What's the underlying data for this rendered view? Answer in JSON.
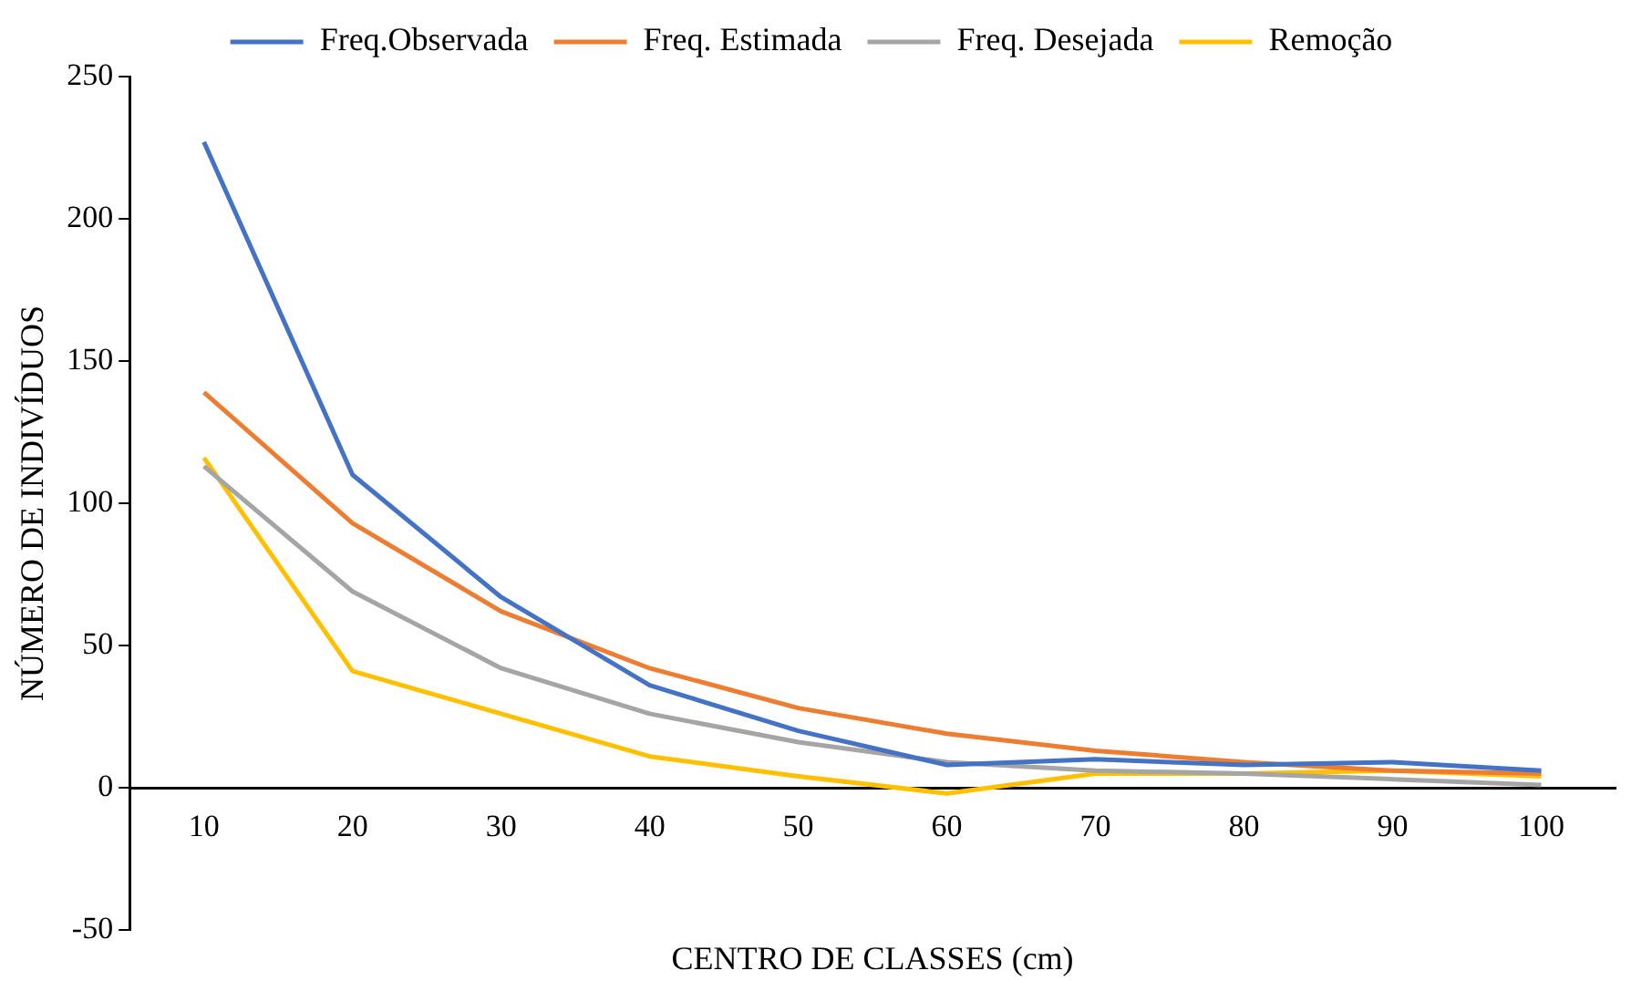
{
  "chart_data": {
    "type": "line",
    "xlabel": "CENTRO DE CLASSES (cm)",
    "ylabel": "NÚMERO DE INDIVÍDUOS",
    "categories": [
      "10",
      "20",
      "30",
      "40",
      "50",
      "60",
      "70",
      "80",
      "90",
      "100"
    ],
    "series": [
      {
        "name": "Freq.Observada",
        "color": "#4472c4",
        "values": [
          227,
          110,
          67,
          36,
          20,
          8,
          10,
          8,
          9,
          6
        ]
      },
      {
        "name": "Freq. Estimada",
        "color": "#ed7d31",
        "values": [
          139,
          93,
          62,
          42,
          28,
          19,
          13,
          9,
          6,
          5
        ]
      },
      {
        "name": "Freq. Desejada",
        "color": "#a5a5a5",
        "values": [
          113,
          69,
          42,
          26,
          16,
          9,
          6,
          5,
          3,
          1
        ]
      },
      {
        "name": "Remoção",
        "color": "#ffc000",
        "values": [
          116,
          41,
          26,
          11,
          4,
          -2,
          5,
          5,
          6,
          4
        ]
      }
    ],
    "ylim": [
      -50,
      250
    ],
    "yticks": [
      -50,
      0,
      50,
      100,
      150,
      200,
      250
    ],
    "grid": false,
    "legend": "top",
    "marker": "none",
    "line_style": "solid"
  }
}
